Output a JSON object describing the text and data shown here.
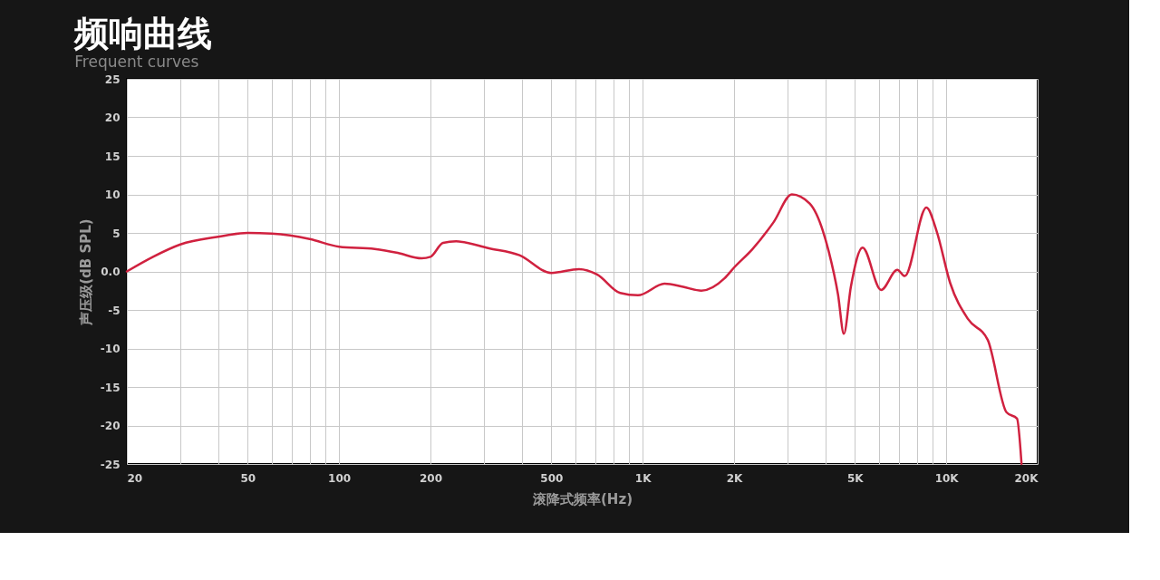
{
  "chart_data": {
    "type": "line",
    "title": "频响曲线",
    "subtitle": "Frequent curves",
    "xlabel": "滚降式频率(Hz)",
    "ylabel": "声压级(dB SPL)",
    "log": "x",
    "grid": true,
    "marker": "none",
    "line_style": "solid",
    "xlim": [
      20,
      20000
    ],
    "ylim": [
      -25,
      25
    ],
    "xticks": [
      {
        "value": 20,
        "label": "20"
      },
      {
        "value": 30,
        "label": null
      },
      {
        "value": 40,
        "label": null
      },
      {
        "value": 50,
        "label": "50"
      },
      {
        "value": 60,
        "label": null
      },
      {
        "value": 70,
        "label": null
      },
      {
        "value": 80,
        "label": null
      },
      {
        "value": 90,
        "label": null
      },
      {
        "value": 100,
        "label": "100"
      },
      {
        "value": 200,
        "label": "200"
      },
      {
        "value": 300,
        "label": null
      },
      {
        "value": 400,
        "label": null
      },
      {
        "value": 500,
        "label": "500"
      },
      {
        "value": 600,
        "label": null
      },
      {
        "value": 700,
        "label": null
      },
      {
        "value": 800,
        "label": null
      },
      {
        "value": 900,
        "label": null
      },
      {
        "value": 1000,
        "label": "1K"
      },
      {
        "value": 2000,
        "label": "2K"
      },
      {
        "value": 3000,
        "label": null
      },
      {
        "value": 4000,
        "label": null
      },
      {
        "value": 5000,
        "label": "5K"
      },
      {
        "value": 6000,
        "label": null
      },
      {
        "value": 7000,
        "label": null
      },
      {
        "value": 8000,
        "label": null
      },
      {
        "value": 9000,
        "label": null
      },
      {
        "value": 10000,
        "label": "10K"
      },
      {
        "value": 20000,
        "label": "20K"
      }
    ],
    "yticks": [
      25,
      20,
      15,
      10,
      5,
      {
        "value": 0,
        "label": "0.0"
      },
      -5,
      -10,
      -15,
      -20,
      -25
    ],
    "series": [
      {
        "color": "#d0213f",
        "x": [
          20,
          24.4,
          30,
          40,
          50,
          60,
          80,
          100,
          131,
          156,
          187,
          200,
          220,
          243,
          312,
          393,
          500,
          617,
          708,
          843,
          965,
          1180,
          1360,
          1560,
          1860,
          2000,
          2300,
          2700,
          3100,
          3550,
          4100,
          4400,
          4600,
          4850,
          5300,
          6100,
          6900,
          7300,
          8600,
          9300,
          10300,
          11800,
          13700,
          15800,
          17100,
          17700
        ],
        "values": [
          0,
          1.9,
          3.5,
          4.5,
          5.0,
          4.9,
          4.2,
          3.2,
          2.9,
          2.4,
          1.7,
          1.9,
          3.7,
          3.9,
          3.0,
          2.1,
          -0.2,
          0.3,
          -0.4,
          -2.8,
          -3.1,
          -1.6,
          -2.0,
          -2.5,
          -0.9,
          0.5,
          2.9,
          6.4,
          10.0,
          8.8,
          2.6,
          -3.0,
          -8.1,
          -2.0,
          3.1,
          -2.4,
          0.2,
          -0.6,
          8.3,
          5.2,
          -1.5,
          -6.2,
          -8.9,
          -18.3,
          -19.1,
          -25
        ]
      }
    ]
  }
}
